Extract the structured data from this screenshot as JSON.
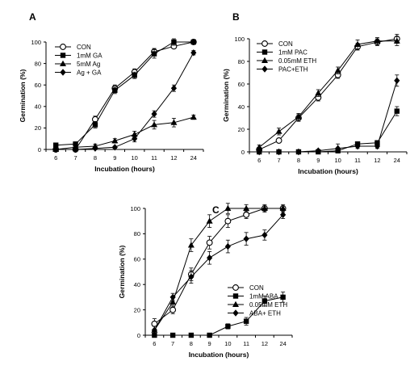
{
  "chart_data": [
    {
      "panel_label": "A",
      "type": "line",
      "categories": [
        "6",
        "7",
        "8",
        "9",
        "10",
        "11",
        "12",
        "24"
      ],
      "xlabel": "Incubation (hours)",
      "ylabel": "Germination (%)",
      "ylim": [
        0,
        100
      ],
      "yticks": [
        0,
        20,
        40,
        60,
        80,
        100
      ],
      "grid": false,
      "legend_position": "top-left",
      "series": [
        {
          "name": "CON",
          "marker": "open-circle",
          "values": [
            0,
            0,
            28,
            57,
            72,
            91,
            96,
            100
          ],
          "errors": [
            1,
            1,
            3,
            3,
            3,
            3,
            2,
            1
          ]
        },
        {
          "name": "1mM GA",
          "marker": "square",
          "values": [
            4,
            5,
            23,
            55,
            69,
            89,
            100,
            100
          ],
          "errors": [
            1,
            2,
            3,
            3,
            3,
            4,
            3,
            1
          ]
        },
        {
          "name": "5mM Ag",
          "marker": "triangle",
          "values": [
            0,
            2,
            3,
            8,
            14,
            23,
            25,
            30
          ],
          "errors": [
            1,
            1,
            2,
            2,
            3,
            4,
            4,
            2
          ]
        },
        {
          "name": "Ag + GA",
          "marker": "diamond",
          "values": [
            0,
            0,
            1,
            2,
            10,
            33,
            57,
            90
          ],
          "errors": [
            1,
            1,
            1,
            1,
            3,
            3,
            3,
            2
          ]
        }
      ]
    },
    {
      "panel_label": "B",
      "type": "line",
      "categories": [
        "6",
        "7",
        "8",
        "9",
        "10",
        "11",
        "12",
        "24"
      ],
      "xlabel": "Incubation (hours)",
      "ylabel": "Germination (%)",
      "ylim": [
        0,
        100
      ],
      "yticks": [
        0,
        20,
        40,
        60,
        80,
        100
      ],
      "grid": false,
      "legend_position": "top-left",
      "series": [
        {
          "name": "CON",
          "marker": "open-circle",
          "values": [
            2,
            10,
            30,
            48,
            68,
            93,
            97,
            100
          ],
          "errors": [
            2,
            2,
            3,
            3,
            3,
            3,
            3,
            4
          ]
        },
        {
          "name": "1mM PAC",
          "marker": "square",
          "values": [
            0,
            0,
            0,
            0,
            1,
            7,
            8,
            36
          ],
          "errors": [
            1,
            1,
            1,
            1,
            1,
            2,
            2,
            4
          ]
        },
        {
          "name": "0.05mM ETH",
          "marker": "triangle",
          "values": [
            4,
            18,
            31,
            52,
            72,
            95,
            98,
            98
          ],
          "errors": [
            2,
            3,
            3,
            3,
            3,
            4,
            3,
            4
          ]
        },
        {
          "name": "PAC+ETH",
          "marker": "diamond",
          "values": [
            0,
            0,
            0,
            1,
            3,
            5,
            5,
            63
          ],
          "errors": [
            1,
            1,
            1,
            1,
            4,
            2,
            2,
            5
          ]
        }
      ]
    },
    {
      "panel_label": "C",
      "type": "line",
      "categories": [
        "6",
        "7",
        "8",
        "9",
        "10",
        "11",
        "12",
        "24"
      ],
      "xlabel": "Incubation (hours)",
      "ylabel": "Germination (%)",
      "ylim": [
        0,
        100
      ],
      "yticks": [
        0,
        20,
        40,
        60,
        80,
        100
      ],
      "grid": false,
      "legend_position": "center-right",
      "series": [
        {
          "name": "CON",
          "marker": "open-circle",
          "values": [
            9,
            20,
            48,
            73,
            90,
            95,
            100,
            100
          ],
          "errors": [
            4,
            3,
            5,
            5,
            5,
            3,
            2,
            2
          ]
        },
        {
          "name": "1mM ABA",
          "marker": "square",
          "values": [
            0,
            0,
            0,
            0,
            7,
            11,
            27,
            30
          ],
          "errors": [
            1,
            1,
            1,
            1,
            2,
            3,
            4,
            4
          ]
        },
        {
          "name": "0.05mM ETH",
          "marker": "triangle",
          "values": [
            4,
            26,
            71,
            90,
            100,
            100,
            100,
            100
          ],
          "errors": [
            3,
            4,
            5,
            5,
            4,
            3,
            3,
            3
          ]
        },
        {
          "name": "ABA+ ETH",
          "marker": "diamond",
          "values": [
            4,
            30,
            46,
            61,
            70,
            76,
            79,
            95
          ],
          "errors": [
            3,
            3,
            5,
            5,
            5,
            5,
            4,
            3
          ]
        }
      ]
    }
  ]
}
